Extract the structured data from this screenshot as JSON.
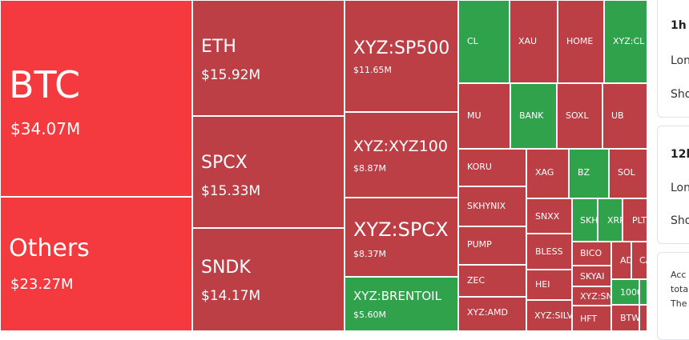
{
  "tiles": {
    "btc": {
      "symbol": "BTC",
      "value": "$34.07M"
    },
    "others": {
      "symbol": "Others",
      "value": "$23.27M"
    },
    "eth": {
      "symbol": "ETH",
      "value": "$15.92M"
    },
    "spcx": {
      "symbol": "SPCX",
      "value": "$15.33M"
    },
    "sndk": {
      "symbol": "SNDK",
      "value": "$14.17M"
    },
    "xyz_sp500": {
      "symbol": "XYZ:SP500",
      "value": "$11.65M"
    },
    "xyz_xyz100": {
      "symbol": "XYZ:XYZ100",
      "value": "$8.87M"
    },
    "xyz_spcx": {
      "symbol": "XYZ:SPCX",
      "value": "$8.37M"
    },
    "xyz_brentoil": {
      "symbol": "XYZ:BRENTOIL",
      "value": "$5.60M"
    },
    "cl": {
      "symbol": "CL"
    },
    "xau": {
      "symbol": "XAU"
    },
    "home": {
      "symbol": "HOME"
    },
    "xyz_cl": {
      "symbol": "XYZ:CL"
    },
    "mu": {
      "symbol": "MU"
    },
    "bank": {
      "symbol": "BANK"
    },
    "soxl": {
      "symbol": "SOXL"
    },
    "ub": {
      "symbol": "UB"
    },
    "koru": {
      "symbol": "KORU"
    },
    "xag": {
      "symbol": "XAG"
    },
    "bz": {
      "symbol": "BZ"
    },
    "sol": {
      "symbol": "SOL"
    },
    "skhynix": {
      "symbol": "SKHYNIX"
    },
    "snxx": {
      "symbol": "SNXX"
    },
    "skh": {
      "symbol": "SKH"
    },
    "xrp": {
      "symbol": "XRP"
    },
    "plt": {
      "symbol": "PLT"
    },
    "pump": {
      "symbol": "PUMP"
    },
    "bless": {
      "symbol": "BLESS"
    },
    "bico": {
      "symbol": "BICO"
    },
    "ad": {
      "symbol": "AD"
    },
    "ca": {
      "symbol": "CA"
    },
    "zec": {
      "symbol": "ZEC"
    },
    "hei": {
      "symbol": "HEI"
    },
    "skyai": {
      "symbol": "SKYAI"
    },
    "xyz_sn": {
      "symbol": "XYZ:SN"
    },
    "t1000": {
      "symbol": "1000"
    },
    "xyz_amd": {
      "symbol": "XYZ:AMD"
    },
    "xyz_sil": {
      "symbol": "XYZ:SILV"
    },
    "hft": {
      "symbol": "HFT"
    },
    "btw": {
      "symbol": "BTW"
    }
  },
  "side": {
    "panel_1h": {
      "title": "1h",
      "long": "Lon",
      "short": "Sho"
    },
    "panel_12h": {
      "title": "12h",
      "long": "Lon",
      "short": "Sho"
    },
    "panel_note": {
      "line1": "Acc",
      "line2": "tota",
      "line3": "The"
    }
  },
  "colors": {
    "loss": "#bd3f46",
    "top_loss": "#f43a3e",
    "gain": "#2fa24b"
  }
}
